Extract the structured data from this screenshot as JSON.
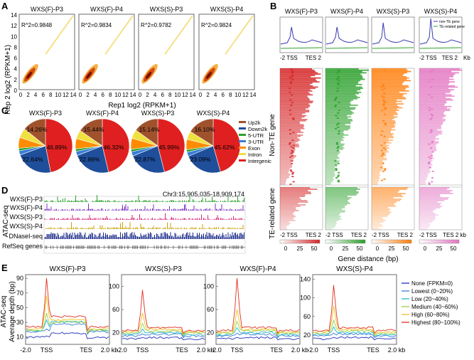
{
  "panels": {
    "A": "A",
    "B": "B",
    "C": "C",
    "D": "D",
    "E": "E"
  },
  "colors": {
    "wxs_f_p3": "#d62728",
    "wxs_f_p4": "#2ca02c",
    "wxs_s_p3": "#ff7f0e",
    "wxs_s_p4": "#e377c2",
    "profile_line": "#3a3ab0",
    "te_line": "#2ca02c",
    "dnase": "#1a2a8a",
    "atac_purple": "#7b2fbf"
  },
  "panel_a": {
    "titles": [
      "WXS(F)-P3",
      "WXS(F)-P4",
      "WXS(S)-P3",
      "WXS(S)-P4"
    ],
    "r2": [
      "R^2=0.9848",
      "R^2=0.9834",
      "R^2=0.9782",
      "R^2=0.9824"
    ],
    "ylabel": "Rep 2 log2 (RPKM+1)",
    "xlabel": "Rep1 log2 (RPKM+1)",
    "yticks": [
      "14",
      "12",
      "10",
      "8",
      "6",
      "4",
      "2",
      "0"
    ],
    "xticks": [
      "0",
      "2",
      "4",
      "6",
      "8",
      "10",
      "12",
      "14"
    ]
  },
  "panel_b": {
    "titles": [
      "WXS(F)-P3",
      "WXS(F)-P4",
      "WXS(S)-P3",
      "WXS(S)-P4"
    ],
    "legend": [
      "non-TE gene",
      "TE-related gene"
    ],
    "axis_tss": "-2 TSS",
    "axis_tes": "TES 2",
    "axis_kb": "Kb",
    "axis_kb2": "kb",
    "row_labels": [
      "Non-TE gene",
      "TE-related gene"
    ],
    "scale_ticks": [
      "0",
      "25",
      "50"
    ],
    "xlabel": "Gene distance (bp)"
  },
  "chart_data": [
    {
      "type": "pie",
      "title": "WXS(F)-P3",
      "categories": [
        "Up2k",
        "Down2k",
        "5-UTR",
        "3-UTR",
        "Exon",
        "Intron",
        "Intergenic"
      ],
      "labeled_values": {
        "Intergenic": "46.89%",
        "Down2k": "22.64%",
        "Up2k": "14.26%"
      }
    },
    {
      "type": "pie",
      "title": "WXS(F)-P4",
      "categories": [
        "Up2k",
        "Down2k",
        "5-UTR",
        "3-UTR",
        "Exon",
        "Intron",
        "Intergenic"
      ],
      "labeled_values": {
        "Intergenic": "46.32%",
        "Down2k": "22.86%",
        "Up2k": "15.44%"
      }
    },
    {
      "type": "pie",
      "title": "WXS(S)-P3",
      "categories": [
        "Up2k",
        "Down2k",
        "5-UTR",
        "3-UTR",
        "Exon",
        "Intron",
        "Intergenic"
      ],
      "labeled_values": {
        "Intergenic": "45.99%",
        "Down2k": "22.87%",
        "Up2k": "15.14%"
      }
    },
    {
      "type": "pie",
      "title": "WXS(S)-P4",
      "categories": [
        "Up2k",
        "Down2k",
        "5-UTR",
        "3-UTR",
        "Exon",
        "Intron",
        "Intergenic"
      ],
      "labeled_values": {
        "Intergenic": "45.62%",
        "Down2k": "23.09%",
        "Up2k": "16.10%"
      }
    },
    {
      "type": "line",
      "title": "WXS(F)-P3",
      "x_ticks": [
        "-2.0",
        "TSS",
        "TES",
        "2.0 kb"
      ],
      "y_ticks": [
        "10",
        "30",
        "50",
        "70",
        "90"
      ],
      "ylim": [
        0,
        95
      ],
      "series": [
        "None (FPKM=0)",
        "Lowest (0~20%)",
        "Low (20~40%)",
        "Medium (40~60%)",
        "High (60~80%)",
        "Highest (80~100%)"
      ]
    },
    {
      "type": "line",
      "title": "WXS(S)-P3",
      "x_ticks": [
        "-2.0",
        "TSS",
        "TES",
        "2.0 kb"
      ],
      "y_ticks": [
        "20",
        "60",
        "100"
      ],
      "ylim": [
        0,
        120
      ],
      "series": [
        "None (FPKM=0)",
        "Lowest (0~20%)",
        "Low (20~40%)",
        "Medium (40~60%)",
        "High (60~80%)",
        "Highest (80~100%)"
      ]
    },
    {
      "type": "line",
      "title": "WXS(F)-P4",
      "x_ticks": [
        "-2.0",
        "TSS",
        "TES",
        "2.0 kb"
      ],
      "y_ticks": [
        "20",
        "60",
        "100"
      ],
      "ylim": [
        0,
        120
      ],
      "series": [
        "None (FPKM=0)",
        "Lowest (0~20%)",
        "Low (20~40%)",
        "Medium (40~60%)",
        "High (60~80%)",
        "Highest (80~100%)"
      ]
    },
    {
      "type": "line",
      "title": "WXS(S)-P4",
      "x_ticks": [
        "-2.0",
        "TSS",
        "TES",
        "2.0 kb"
      ],
      "y_ticks": [
        "20",
        "60",
        "100",
        "140"
      ],
      "ylim": [
        0,
        150
      ],
      "series": [
        "None (FPKM=0)",
        "Lowest (0~20%)",
        "Low (20~40%)",
        "Medium (40~60%)",
        "High (60~80%)",
        "Highest (80~100%)"
      ]
    }
  ],
  "panel_c": {
    "legend": [
      "Up2k",
      "Down2k",
      "5-UTR",
      "3-UTR",
      "Exon",
      "Intron",
      "Intergenic"
    ],
    "legend_colors": [
      "#a0522d",
      "#1f4e9a",
      "#2ca02c",
      "#3a7dd8",
      "#ff8c00",
      "#f0e040",
      "#e02020"
    ]
  },
  "panel_d": {
    "region": "Chr3:15,905,035-18,909,174",
    "tracks": [
      "WXS(F)-P3",
      "WXS(F)-P4",
      "WXS(S)-P3",
      "WXS(S)-P4",
      "DNaseI-seq",
      "RefSeq genes"
    ],
    "track_colors": [
      "#2aa02a",
      "#7b2fbf",
      "#d6267a",
      "#c8a000",
      "#1a2a8a"
    ],
    "group_label": "ATAC-seq"
  },
  "panel_e": {
    "ylabel_1": "ATAC-seq",
    "ylabel_2": "Average depth (bp)",
    "legend": [
      "None (FPKM=0)",
      "Lowest (0~20%)",
      "Low (20~40%)",
      "Medium (40~60%)",
      "High (60~80%)",
      "Highest (80~100%)"
    ],
    "legend_colors": [
      "#1f2fbf",
      "#3a7dd8",
      "#20b8c8",
      "#9ad040",
      "#f0c020",
      "#e03020"
    ]
  }
}
